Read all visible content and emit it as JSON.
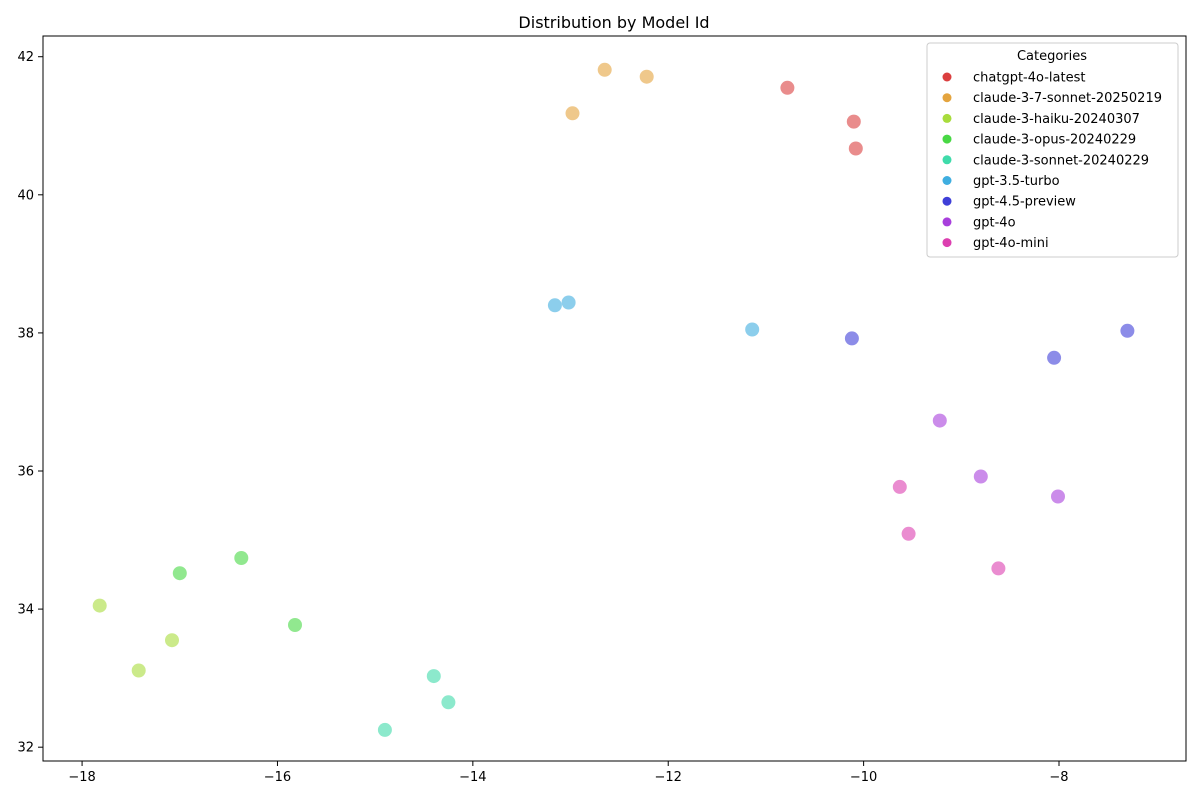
{
  "chart_data": {
    "type": "scatter",
    "title": "Distribution by Model Id",
    "xlabel": "",
    "ylabel": "",
    "xlim": [
      -18.4,
      -6.7
    ],
    "ylim": [
      31.8,
      42.3
    ],
    "xticks": [
      -18,
      -16,
      -14,
      -12,
      -10,
      -8
    ],
    "yticks": [
      32,
      34,
      36,
      38,
      40,
      42
    ],
    "grid": false,
    "legend": {
      "title": "Categories",
      "placement": "top-right"
    },
    "series": [
      {
        "name": "chatgpt-4o-latest",
        "color": "#db3f3f",
        "points": [
          [
            -10.78,
            41.55
          ],
          [
            -10.1,
            41.06
          ],
          [
            -10.08,
            40.67
          ]
        ]
      },
      {
        "name": "claude-3-7-sonnet-20250219",
        "color": "#e4a43e",
        "points": [
          [
            -12.65,
            41.81
          ],
          [
            -12.22,
            41.71
          ],
          [
            -12.98,
            41.18
          ]
        ]
      },
      {
        "name": "claude-3-haiku-20240307",
        "color": "#a8dc3c",
        "points": [
          [
            -17.82,
            34.05
          ],
          [
            -17.08,
            33.55
          ],
          [
            -17.42,
            33.11
          ]
        ]
      },
      {
        "name": "claude-3-opus-20240229",
        "color": "#48d844",
        "points": [
          [
            -16.37,
            34.74
          ],
          [
            -17.0,
            34.52
          ],
          [
            -15.82,
            33.77
          ]
        ]
      },
      {
        "name": "claude-3-sonnet-20240229",
        "color": "#3fdbaa",
        "points": [
          [
            -14.4,
            33.03
          ],
          [
            -14.25,
            32.65
          ],
          [
            -14.9,
            32.25
          ]
        ]
      },
      {
        "name": "gpt-3.5-turbo",
        "color": "#3faee0",
        "points": [
          [
            -13.02,
            38.44
          ],
          [
            -13.16,
            38.4
          ],
          [
            -11.14,
            38.05
          ]
        ]
      },
      {
        "name": "gpt-4.5-preview",
        "color": "#3f3fd8",
        "points": [
          [
            -10.12,
            37.92
          ],
          [
            -7.3,
            38.03
          ],
          [
            -8.05,
            37.64
          ]
        ]
      },
      {
        "name": "gpt-4o",
        "color": "#a83fdc",
        "points": [
          [
            -9.22,
            36.73
          ],
          [
            -8.8,
            35.92
          ],
          [
            -8.01,
            35.63
          ]
        ]
      },
      {
        "name": "gpt-4o-mini",
        "color": "#dc3fb0",
        "points": [
          [
            -9.63,
            35.77
          ],
          [
            -9.54,
            35.09
          ],
          [
            -8.62,
            34.59
          ]
        ]
      }
    ]
  }
}
